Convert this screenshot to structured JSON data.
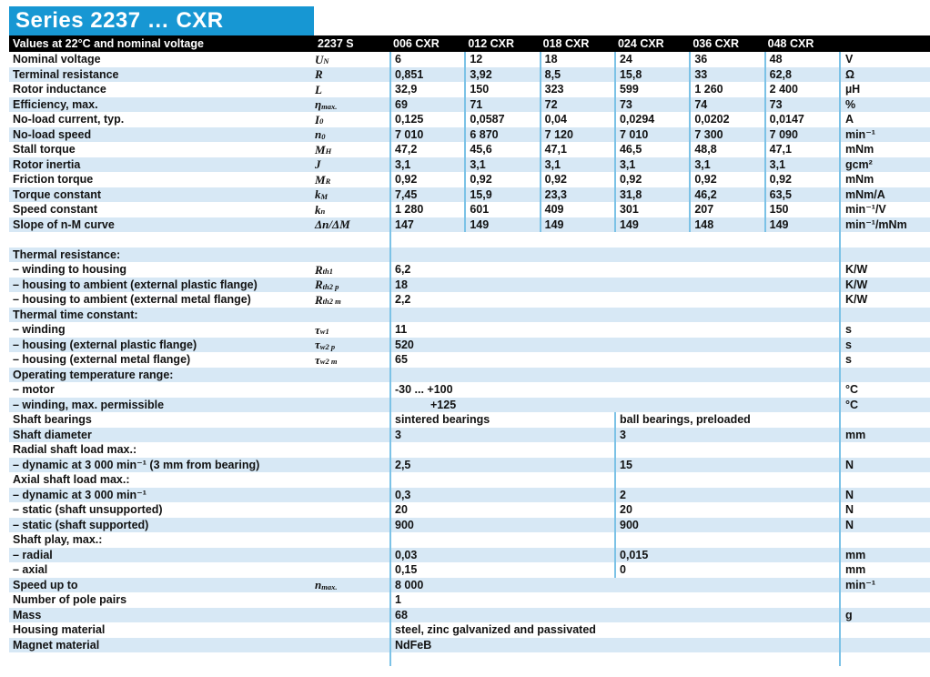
{
  "title": "Series 2237 … CXR",
  "colors": {
    "accent": "#1797d3",
    "stripe": "#d7e8f5",
    "line": "#7cc2e6",
    "header_bg": "#000000"
  },
  "header": {
    "label": "Values at 22°C and nominal voltage",
    "series_col": "2237 S",
    "models": [
      "006 CXR",
      "012 CXR",
      "018 CXR",
      "024 CXR",
      "036 CXR",
      "048 CXR"
    ]
  },
  "rows": [
    {
      "type": "cols6",
      "shade": false,
      "label": "Nominal voltage",
      "sym": {
        "base": "U",
        "sub": "N"
      },
      "values": [
        "6",
        "12",
        "18",
        "24",
        "36",
        "48"
      ],
      "unit": "V"
    },
    {
      "type": "cols6",
      "shade": true,
      "label": "Terminal resistance",
      "sym": {
        "base": "R",
        "sub": ""
      },
      "values": [
        "0,851",
        "3,92",
        "8,5",
        "15,8",
        "33",
        "62,8"
      ],
      "unit": "Ω"
    },
    {
      "type": "cols6",
      "shade": false,
      "label": "Rotor inductance",
      "sym": {
        "base": "L",
        "sub": ""
      },
      "values": [
        "32,9",
        "150",
        "323",
        "599",
        "1 260",
        "2 400"
      ],
      "unit": "µH"
    },
    {
      "type": "cols6",
      "shade": true,
      "label": "Efficiency, max.",
      "sym": {
        "base": "η",
        "sub": "max."
      },
      "values": [
        "69",
        "71",
        "72",
        "73",
        "74",
        "73"
      ],
      "unit": "%"
    },
    {
      "type": "cols6",
      "shade": false,
      "label": "No-load current, typ.",
      "sym": {
        "base": "I",
        "sub": "0"
      },
      "values": [
        "0,125",
        "0,0587",
        "0,04",
        "0,0294",
        "0,0202",
        "0,0147"
      ],
      "unit": "A"
    },
    {
      "type": "cols6",
      "shade": true,
      "label": "No-load speed",
      "sym": {
        "base": "n",
        "sub": "0"
      },
      "values": [
        "7 010",
        "6 870",
        "7 120",
        "7 010",
        "7 300",
        "7 090"
      ],
      "unit": "min⁻¹"
    },
    {
      "type": "cols6",
      "shade": false,
      "label": "Stall torque",
      "sym": {
        "base": "M",
        "sub": "H"
      },
      "values": [
        "47,2",
        "45,6",
        "47,1",
        "46,5",
        "48,8",
        "47,1"
      ],
      "unit": "mNm"
    },
    {
      "type": "cols6",
      "shade": true,
      "label": "Rotor inertia",
      "sym": {
        "base": "J",
        "sub": ""
      },
      "values": [
        "3,1",
        "3,1",
        "3,1",
        "3,1",
        "3,1",
        "3,1"
      ],
      "unit": "gcm²"
    },
    {
      "type": "cols6",
      "shade": false,
      "label": "Friction torque",
      "sym": {
        "base": "M",
        "sub": "R"
      },
      "values": [
        "0,92",
        "0,92",
        "0,92",
        "0,92",
        "0,92",
        "0,92"
      ],
      "unit": "mNm"
    },
    {
      "type": "cols6",
      "shade": true,
      "label": "Torque constant",
      "sym": {
        "base": "k",
        "sub": "M"
      },
      "values": [
        "7,45",
        "15,9",
        "23,3",
        "31,8",
        "46,2",
        "63,5"
      ],
      "unit": "mNm/A"
    },
    {
      "type": "cols6",
      "shade": false,
      "label": "Speed constant",
      "sym": {
        "base": "k",
        "sub": "n"
      },
      "values": [
        "1 280",
        "601",
        "409",
        "301",
        "207",
        "150"
      ],
      "unit": "min⁻¹/V"
    },
    {
      "type": "cols6",
      "shade": true,
      "label": "Slope of n-M curve",
      "sym": {
        "base": "Δn/ΔM",
        "sub": ""
      },
      "values": [
        "147",
        "149",
        "149",
        "149",
        "148",
        "149"
      ],
      "unit": "min⁻¹/mNm"
    },
    {
      "type": "gap"
    },
    {
      "type": "span",
      "shade": true,
      "label": "Thermal resistance:",
      "sym": null,
      "value": "",
      "unit": ""
    },
    {
      "type": "span",
      "shade": false,
      "label": "– winding to housing",
      "sym": {
        "base": "R",
        "sub": "th1"
      },
      "value": "6,2",
      "unit": "K/W"
    },
    {
      "type": "span",
      "shade": true,
      "label": "– housing to ambient (external plastic flange)",
      "sym": {
        "base": "R",
        "sub": "th2 p"
      },
      "value": "18",
      "unit": "K/W"
    },
    {
      "type": "span",
      "shade": false,
      "label": "– housing to ambient (external metal flange)",
      "sym": {
        "base": "R",
        "sub": "th2 m"
      },
      "value": "2,2",
      "unit": "K/W"
    },
    {
      "type": "span",
      "shade": true,
      "label": "Thermal time constant:",
      "sym": null,
      "value": "",
      "unit": ""
    },
    {
      "type": "span",
      "shade": false,
      "label": "– winding",
      "sym": {
        "base": "τ",
        "sub": "w1"
      },
      "value": "11",
      "unit": "s"
    },
    {
      "type": "span",
      "shade": true,
      "label": "– housing (external plastic flange)",
      "sym": {
        "base": "τ",
        "sub": "w2 p"
      },
      "value": "520",
      "unit": "s"
    },
    {
      "type": "span",
      "shade": false,
      "label": "– housing (external metal flange)",
      "sym": {
        "base": "τ",
        "sub": "w2 m"
      },
      "value": "65",
      "unit": "s"
    },
    {
      "type": "span",
      "shade": true,
      "label": "Operating temperature range:",
      "sym": null,
      "value": "",
      "unit": ""
    },
    {
      "type": "span",
      "shade": false,
      "label": "– motor",
      "sym": null,
      "value": "-30 ... +100",
      "unit": "°C"
    },
    {
      "type": "span",
      "shade": true,
      "label": "– winding, max. permissible",
      "sym": null,
      "value": "+125",
      "indent": true,
      "unit": "°C"
    },
    {
      "type": "half",
      "shade": false,
      "label": "Shaft bearings",
      "v1": "sintered bearings",
      "v2": "ball bearings, preloaded",
      "unit": ""
    },
    {
      "type": "half",
      "shade": true,
      "label": "Shaft diameter",
      "v1": "3",
      "v2": "3",
      "unit": "mm"
    },
    {
      "type": "half",
      "shade": false,
      "label": "Radial shaft load max.:",
      "v1": "",
      "v2": "",
      "unit": ""
    },
    {
      "type": "half",
      "shade": true,
      "label": "– dynamic at 3 000 min⁻¹ (3 mm from bearing)",
      "v1": "2,5",
      "v2": "15",
      "unit": "N"
    },
    {
      "type": "half",
      "shade": false,
      "label": "Axial shaft load max.:",
      "v1": "",
      "v2": "",
      "unit": ""
    },
    {
      "type": "half",
      "shade": true,
      "label": "– dynamic at 3 000 min⁻¹",
      "v1": "0,3",
      "v2": "2",
      "unit": "N"
    },
    {
      "type": "half",
      "shade": false,
      "label": "– static (shaft unsupported)",
      "v1": "20",
      "v2": "20",
      "unit": "N"
    },
    {
      "type": "half",
      "shade": true,
      "label": "– static (shaft supported)",
      "v1": "900",
      "v2": "900",
      "unit": "N"
    },
    {
      "type": "half",
      "shade": false,
      "label": "Shaft play, max.:",
      "v1": "",
      "v2": "",
      "unit": ""
    },
    {
      "type": "half",
      "shade": true,
      "label": "– radial",
      "v1": "0,03",
      "v2": "0,015",
      "unit": "mm"
    },
    {
      "type": "half",
      "shade": false,
      "label": "– axial",
      "v1": "0,15",
      "v2": "0",
      "unit": "mm"
    },
    {
      "type": "span",
      "shade": true,
      "label": "Speed up to",
      "sym": {
        "base": "n",
        "sub": "max."
      },
      "value": "8 000",
      "unit": "min⁻¹"
    },
    {
      "type": "span",
      "shade": false,
      "label": "Number of pole pairs",
      "sym": null,
      "value": "1",
      "unit": ""
    },
    {
      "type": "span",
      "shade": true,
      "label": "Mass",
      "sym": null,
      "value": "68",
      "unit": "g"
    },
    {
      "type": "span",
      "shade": false,
      "label": "Housing material",
      "sym": null,
      "value": "steel, zinc galvanized and passivated",
      "unit": ""
    },
    {
      "type": "span",
      "shade": true,
      "label": "Magnet material",
      "sym": null,
      "value": "NdFeB",
      "unit": ""
    },
    {
      "type": "filler"
    }
  ]
}
